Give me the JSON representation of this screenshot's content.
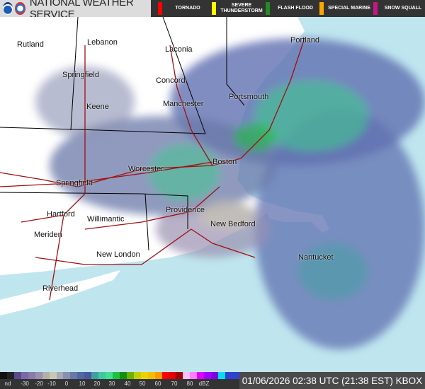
{
  "header": {
    "title": "NATIONAL WEATHER SERVICE",
    "logos": [
      "noaa-logo",
      "nws-logo"
    ],
    "warnings": [
      {
        "label": "TORNADO",
        "color": "#ff0000"
      },
      {
        "label": "SEVERE THUNDERSTORM",
        "color": "#ffff00"
      },
      {
        "label": "FLASH FLOOD",
        "color": "#228b22"
      },
      {
        "label": "SPECIAL MARINE",
        "color": "#ffa500"
      },
      {
        "label": "SNOW SQUALL",
        "color": "#c71585"
      }
    ]
  },
  "map": {
    "ocean_color": "#bfe6ef",
    "land_color": "#ffffff",
    "cities": [
      "Rutland",
      "Lebanon",
      "Laconia",
      "Portland",
      "Springfield",
      "Concord",
      "Keene",
      "Manchester",
      "Portsmouth",
      "Worcester",
      "Boston",
      "Springfield",
      "Hartford",
      "Willimantic",
      "Providence",
      "New Bedford",
      "Meriden",
      "New London",
      "Nantucket",
      "Riverhead"
    ]
  },
  "legend": {
    "ticks": [
      "nd",
      "-30",
      "-20",
      "-10",
      "0",
      "10",
      "20",
      "30",
      "40",
      "50",
      "60",
      "70",
      "80",
      "dBZ"
    ],
    "colors": [
      "#111",
      "#222",
      "#5a4a8a",
      "#7a68a8",
      "#8a7aa8",
      "#9a90b0",
      "#b0b0a8",
      "#c8c8b0",
      "#a8a8b8",
      "#8890b0",
      "#6878a8",
      "#5068a0",
      "#4858a0",
      "#40a0a0",
      "#40c8a0",
      "#40e090",
      "#20c040",
      "#109010",
      "#70b000",
      "#c0d000",
      "#f0d000",
      "#f0c000",
      "#ff9900",
      "#ff0000",
      "#e00000",
      "#a00000",
      "#ffc0ff",
      "#ff80ff",
      "#e000ff",
      "#a000ff",
      "#8000e0",
      "#00e0f0",
      "#3040d0",
      "#3040d0"
    ]
  },
  "timestamp": "01/06/2026 02:38 UTC (21:38 EST) KBOX"
}
